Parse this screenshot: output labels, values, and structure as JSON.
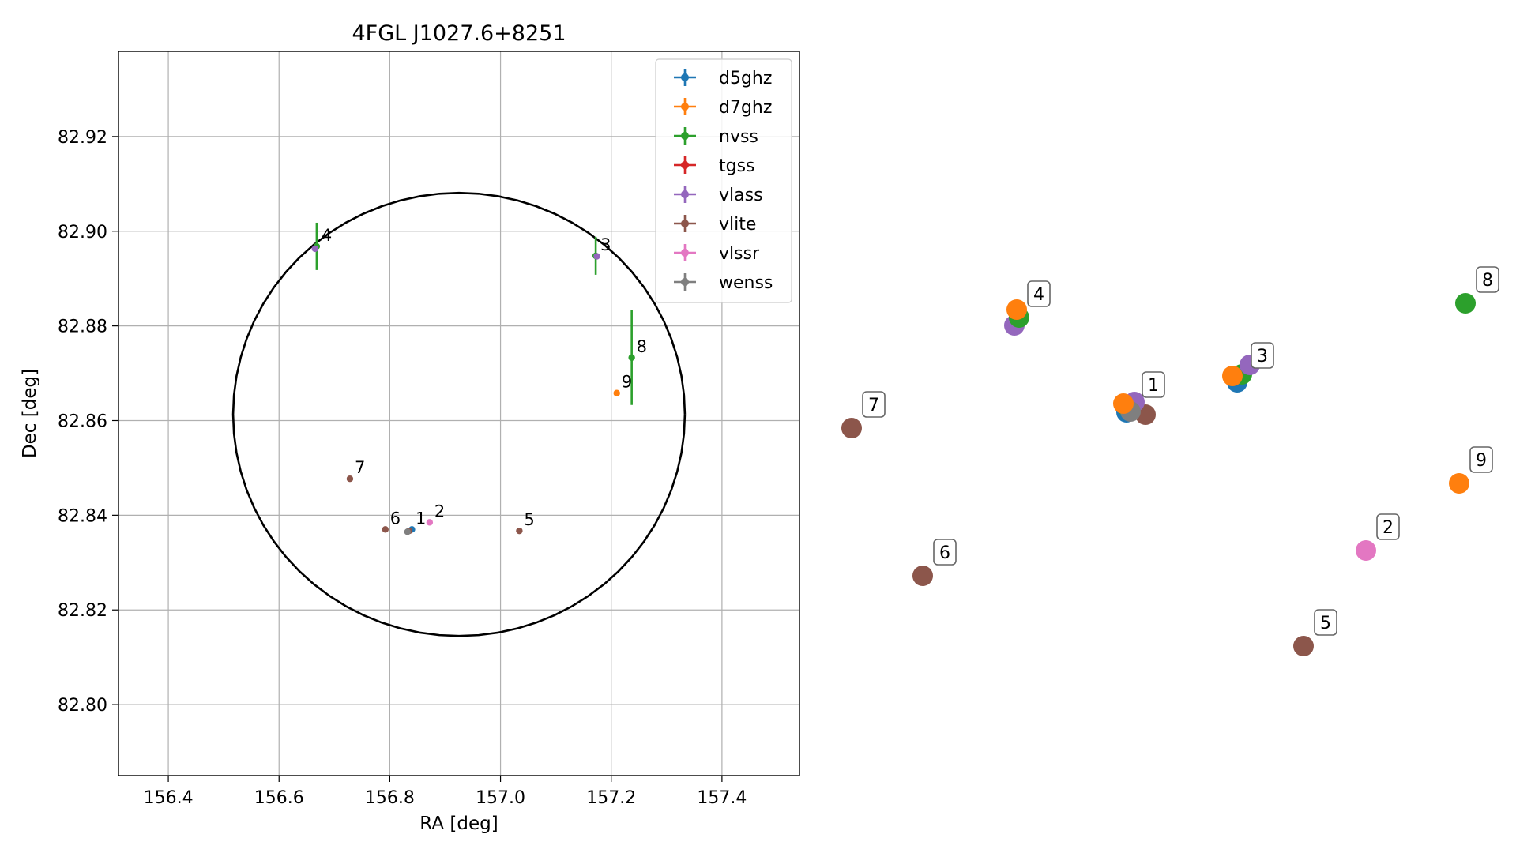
{
  "chart_data": [
    {
      "type": "scatter",
      "title": "4FGL J1027.6+8251",
      "xlabel": "RA [deg]",
      "ylabel": "Dec [deg]",
      "xlim": [
        156.31,
        157.54
      ],
      "ylim": [
        82.785,
        82.938
      ],
      "xticks": [
        156.4,
        156.6,
        156.8,
        157.0,
        157.2,
        157.4
      ],
      "xtick_labels": [
        "156.4",
        "156.6",
        "156.8",
        "157.0",
        "157.2",
        "157.4"
      ],
      "yticks": [
        82.8,
        82.82,
        82.84,
        82.86,
        82.88,
        82.9,
        82.92
      ],
      "ytick_labels": [
        "82.80",
        "82.82",
        "82.84",
        "82.86",
        "82.88",
        "82.90",
        "82.92"
      ],
      "grid": true,
      "legend_position": "top-right",
      "series": [
        {
          "name": "d5ghz",
          "color": "#1f77b4",
          "points": [
            {
              "x": 156.84,
              "y": 82.837,
              "yerr": 0.0
            }
          ]
        },
        {
          "name": "d7ghz",
          "color": "#ff7f0e",
          "points": [
            {
              "x": 157.21,
              "y": 82.8658,
              "yerr": 0.0
            }
          ]
        },
        {
          "name": "nvss",
          "color": "#2ca02c",
          "points": [
            {
              "x": 156.668,
              "y": 82.8968,
              "yerr": 0.005
            },
            {
              "x": 157.172,
              "y": 82.8948,
              "yerr": 0.004
            },
            {
              "x": 157.237,
              "y": 82.8733,
              "yerr": 0.01
            }
          ]
        },
        {
          "name": "tgss",
          "color": "#d62728",
          "points": []
        },
        {
          "name": "vlass",
          "color": "#9467bd",
          "points": [
            {
              "x": 156.665,
              "y": 82.8963,
              "yerr": 0.0
            },
            {
              "x": 157.174,
              "y": 82.8947,
              "yerr": 0.0
            }
          ]
        },
        {
          "name": "vlite",
          "color": "#8c564b",
          "points": [
            {
              "x": 156.835,
              "y": 82.8367,
              "yerr": 0.0
            },
            {
              "x": 157.034,
              "y": 82.8367,
              "yerr": 0.0
            },
            {
              "x": 156.792,
              "y": 82.837,
              "yerr": 0.0
            },
            {
              "x": 156.728,
              "y": 82.8477,
              "yerr": 0.0
            }
          ]
        },
        {
          "name": "vlssr",
          "color": "#e377c2",
          "points": [
            {
              "x": 156.872,
              "y": 82.8385,
              "yerr": 0.0
            }
          ]
        },
        {
          "name": "wenss",
          "color": "#7f7f7f",
          "points": [
            {
              "x": 156.832,
              "y": 82.8365,
              "yerr": 0.0
            }
          ]
        }
      ],
      "source_labels": [
        {
          "label": "1",
          "x": 156.838,
          "y": 82.837
        },
        {
          "label": "2",
          "x": 156.872,
          "y": 82.8385
        },
        {
          "label": "3",
          "x": 157.172,
          "y": 82.8948
        },
        {
          "label": "4",
          "x": 156.668,
          "y": 82.8968
        },
        {
          "label": "5",
          "x": 157.034,
          "y": 82.8367
        },
        {
          "label": "6",
          "x": 156.792,
          "y": 82.837
        },
        {
          "label": "7",
          "x": 156.728,
          "y": 82.8477
        },
        {
          "label": "8",
          "x": 157.237,
          "y": 82.8733
        },
        {
          "label": "9",
          "x": 157.21,
          "y": 82.8658
        }
      ],
      "circle": {
        "ra_center": 156.925,
        "dec_center": 82.8613,
        "ra_radius": 0.408,
        "dec_radius": 0.0468,
        "color": "#000000"
      }
    },
    {
      "type": "scatter",
      "description_free": true,
      "markers": [
        {
          "label": "1",
          "series": [
            "vlite",
            "d5ghz",
            "nvss",
            "vlass",
            "wenss",
            "d7ghz"
          ],
          "boxed_label": true
        },
        {
          "label": "2",
          "series": [
            "vlssr"
          ],
          "boxed_label": true
        },
        {
          "label": "3",
          "series": [
            "d5ghz",
            "nvss",
            "vlass",
            "d7ghz"
          ],
          "boxed_label": true
        },
        {
          "label": "4",
          "series": [
            "vlass",
            "nvss",
            "d7ghz"
          ],
          "boxed_label": true
        },
        {
          "label": "5",
          "series": [
            "vlite"
          ],
          "boxed_label": true
        },
        {
          "label": "6",
          "series": [
            "vlite"
          ],
          "boxed_label": true
        },
        {
          "label": "7",
          "series": [
            "vlite"
          ],
          "boxed_label": true
        },
        {
          "label": "8",
          "series": [
            "nvss"
          ],
          "boxed_label": true
        },
        {
          "label": "9",
          "series": [
            "d7ghz"
          ],
          "boxed_label": true
        }
      ]
    }
  ]
}
